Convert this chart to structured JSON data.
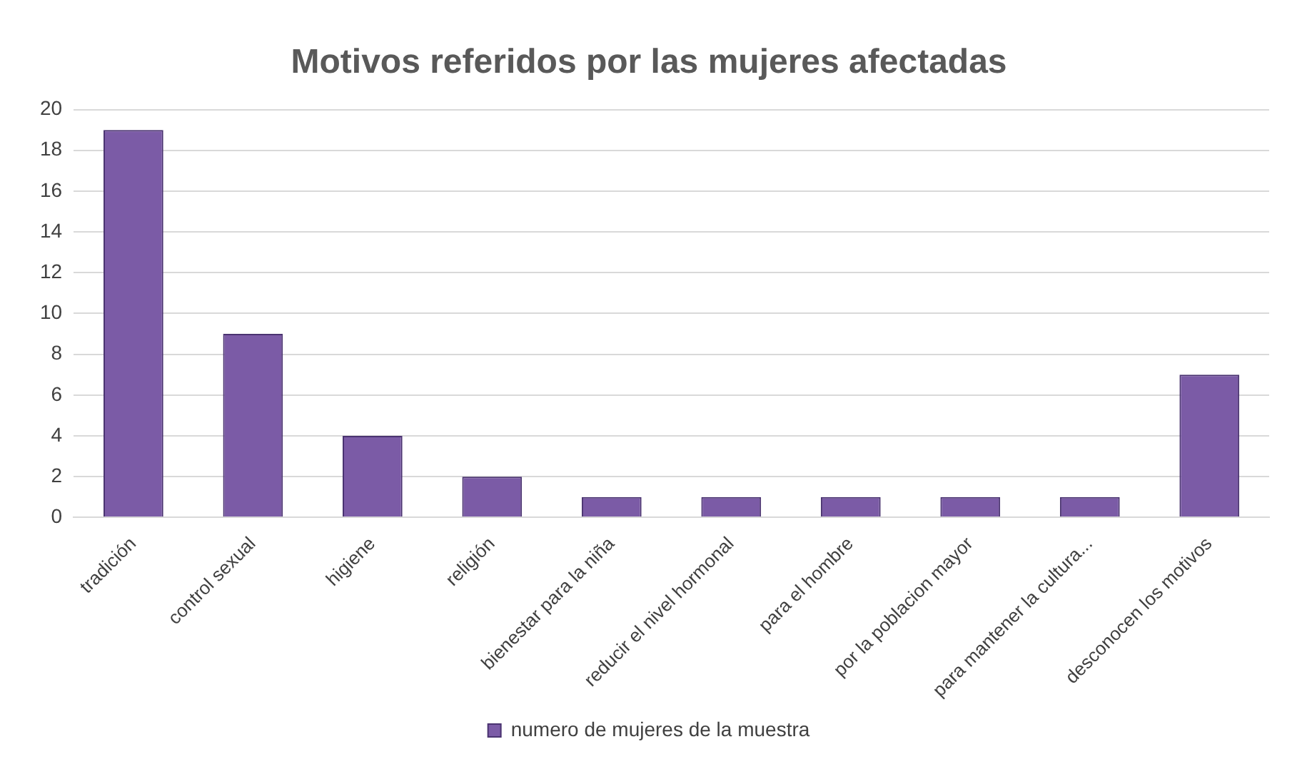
{
  "chart_data": {
    "type": "bar",
    "title": "Motivos referidos por las mujeres afectadas",
    "categories": [
      "tradición",
      "control sexual",
      "higiene",
      "religión",
      "bienestar para la niña",
      "reducir el nivel hormonal",
      "para el hombre",
      "por la poblacion mayor",
      "para mantener la cultura...",
      "desconocen los motivos"
    ],
    "series": [
      {
        "name": "numero de mujeres de la muestra",
        "color": "#7b5ba6",
        "values": [
          19,
          9,
          4,
          2,
          1,
          1,
          1,
          1,
          1,
          7
        ]
      }
    ],
    "ylim": [
      0,
      20
    ],
    "yticks": [
      0,
      2,
      4,
      6,
      8,
      10,
      12,
      14,
      16,
      18,
      20
    ],
    "grid": "y",
    "legend": "bottom"
  }
}
